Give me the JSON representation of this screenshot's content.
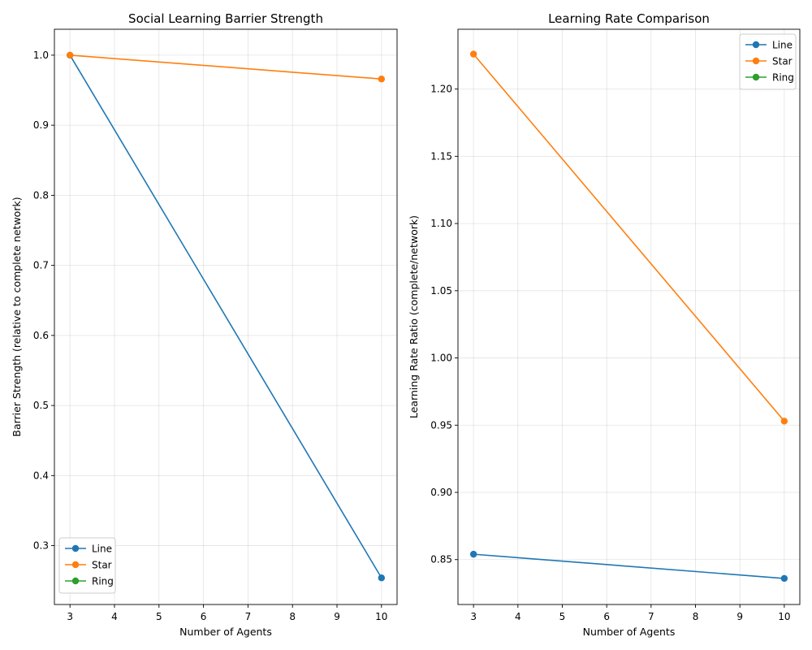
{
  "chart_data": [
    {
      "type": "line",
      "title": "Social Learning Barrier Strength",
      "xlabel": "Number of Agents",
      "ylabel": "Barrier Strength (relative to complete network)",
      "xlim": [
        2.65,
        10.35
      ],
      "ylim": [
        0.216,
        1.037
      ],
      "xticks": [
        3,
        4,
        5,
        6,
        7,
        8,
        9,
        10
      ],
      "yticks": [
        0.3,
        0.4,
        0.5,
        0.6,
        0.7,
        0.8,
        0.9,
        1.0
      ],
      "ytick_labels": [
        "0.3",
        "0.4",
        "0.5",
        "0.6",
        "0.7",
        "0.8",
        "0.9",
        "1.0"
      ],
      "grid": true,
      "legend_position": "lower-left",
      "series": [
        {
          "name": "Line",
          "color": "#1f77b4",
          "x": [
            3,
            10
          ],
          "y": [
            1.0,
            0.254
          ]
        },
        {
          "name": "Star",
          "color": "#ff7f0e",
          "x": [
            3,
            10
          ],
          "y": [
            1.0,
            0.966
          ]
        },
        {
          "name": "Ring",
          "color": "#2ca02c",
          "x": [],
          "y": []
        }
      ]
    },
    {
      "type": "line",
      "title": "Learning Rate Comparison",
      "xlabel": "Number of Agents",
      "ylabel": "Learning Rate Ratio (complete/network)",
      "xlim": [
        2.65,
        10.35
      ],
      "ylim": [
        0.8166,
        1.2445
      ],
      "xticks": [
        3,
        4,
        5,
        6,
        7,
        8,
        9,
        10
      ],
      "yticks": [
        0.85,
        0.9,
        0.95,
        1.0,
        1.05,
        1.1,
        1.15,
        1.2
      ],
      "ytick_labels": [
        "0.85",
        "0.90",
        "0.95",
        "1.00",
        "1.05",
        "1.10",
        "1.15",
        "1.20"
      ],
      "grid": true,
      "legend_position": "upper-right",
      "series": [
        {
          "name": "Line",
          "color": "#1f77b4",
          "x": [
            3,
            10
          ],
          "y": [
            0.854,
            0.836
          ]
        },
        {
          "name": "Star",
          "color": "#ff7f0e",
          "x": [
            3,
            10
          ],
          "y": [
            1.226,
            0.953
          ]
        },
        {
          "name": "Ring",
          "color": "#2ca02c",
          "x": [],
          "y": []
        }
      ]
    }
  ]
}
